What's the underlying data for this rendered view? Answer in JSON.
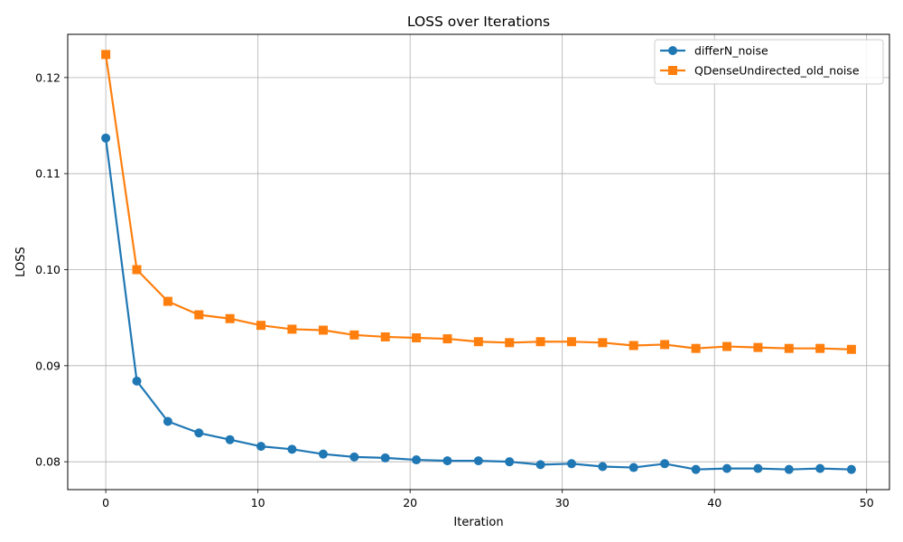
{
  "chart_data": {
    "type": "line",
    "title": "LOSS over Iterations",
    "xlabel": "Iteration",
    "ylabel": "LOSS",
    "xlim": [
      -2.5,
      51.5
    ],
    "ylim": [
      0.0771,
      0.1245
    ],
    "xticks": [
      0,
      10,
      20,
      30,
      40,
      50
    ],
    "yticks": [
      0.08,
      0.09,
      0.1,
      0.11,
      0.12
    ],
    "ytick_labels": [
      "0.08",
      "0.09",
      "0.10",
      "0.11",
      "0.12"
    ],
    "grid": true,
    "legend_position": "top-right",
    "x": [
      0,
      2.04,
      4.08,
      6.12,
      8.16,
      10.2,
      12.24,
      14.29,
      16.33,
      18.37,
      20.41,
      22.45,
      24.49,
      26.53,
      28.57,
      30.61,
      32.65,
      34.69,
      36.73,
      38.78,
      40.82,
      42.86,
      44.9,
      46.94,
      49
    ],
    "series": [
      {
        "name": "differN_noise",
        "color": "#1f77b4",
        "marker": "circle",
        "values": [
          0.1137,
          0.0884,
          0.0842,
          0.083,
          0.0823,
          0.0816,
          0.0813,
          0.0808,
          0.0805,
          0.0804,
          0.0802,
          0.0801,
          0.0801,
          0.08,
          0.0797,
          0.0798,
          0.0795,
          0.0794,
          0.0798,
          0.0792,
          0.0793,
          0.0793,
          0.0792,
          0.0793,
          0.0792
        ]
      },
      {
        "name": "QDenseUndirected_old_noise",
        "color": "#ff7f0e",
        "marker": "square",
        "values": [
          0.1224,
          0.1,
          0.0967,
          0.0953,
          0.0949,
          0.0942,
          0.0938,
          0.0937,
          0.0932,
          0.093,
          0.0929,
          0.0928,
          0.0925,
          0.0924,
          0.0925,
          0.0925,
          0.0924,
          0.0921,
          0.0922,
          0.0918,
          0.092,
          0.0919,
          0.0918,
          0.0918,
          0.0917
        ]
      }
    ]
  }
}
